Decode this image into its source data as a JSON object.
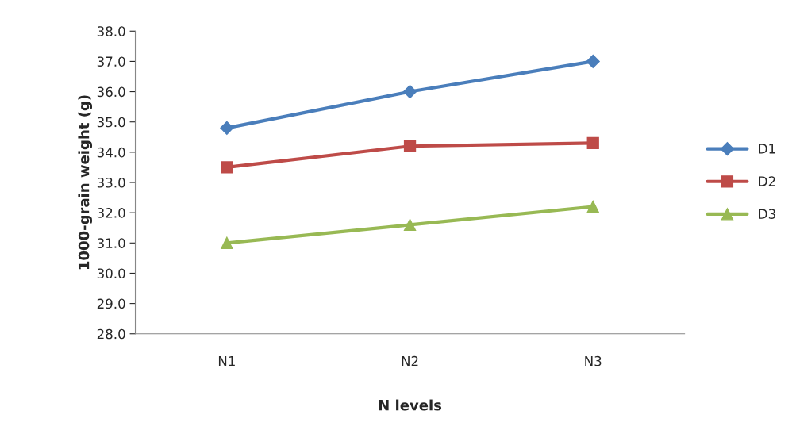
{
  "chart_data": {
    "type": "line",
    "xlabel": "N levels",
    "ylabel": "1000-grain weight (g)",
    "categories": [
      "N1",
      "N2",
      "N3"
    ],
    "series": [
      {
        "name": "D1",
        "color": "#4a7ebb",
        "values": [
          34.8,
          36.0,
          37.0
        ],
        "marker": "diamond"
      },
      {
        "name": "D2",
        "color": "#be4b48",
        "values": [
          33.5,
          34.2,
          34.3
        ],
        "marker": "square"
      },
      {
        "name": "D3",
        "color": "#98b954",
        "values": [
          31.0,
          31.6,
          32.2
        ],
        "marker": "triangle"
      }
    ],
    "ylim": [
      28,
      38
    ],
    "yticks": [
      {
        "value": 28,
        "label": "28.0"
      },
      {
        "value": 29,
        "label": "29.0"
      },
      {
        "value": 30,
        "label": "30.0"
      },
      {
        "value": 31,
        "label": "31.0"
      },
      {
        "value": 32,
        "label": "32.0"
      },
      {
        "value": 33,
        "label": "33.0"
      },
      {
        "value": 34,
        "label": "34.0"
      },
      {
        "value": 35,
        "label": "35.0"
      },
      {
        "value": 36,
        "label": "36.0"
      },
      {
        "value": 37,
        "label": "37.0"
      },
      {
        "value": 38,
        "label": "38.0"
      }
    ],
    "grid": false,
    "legend": "right",
    "line_style": "solid"
  }
}
